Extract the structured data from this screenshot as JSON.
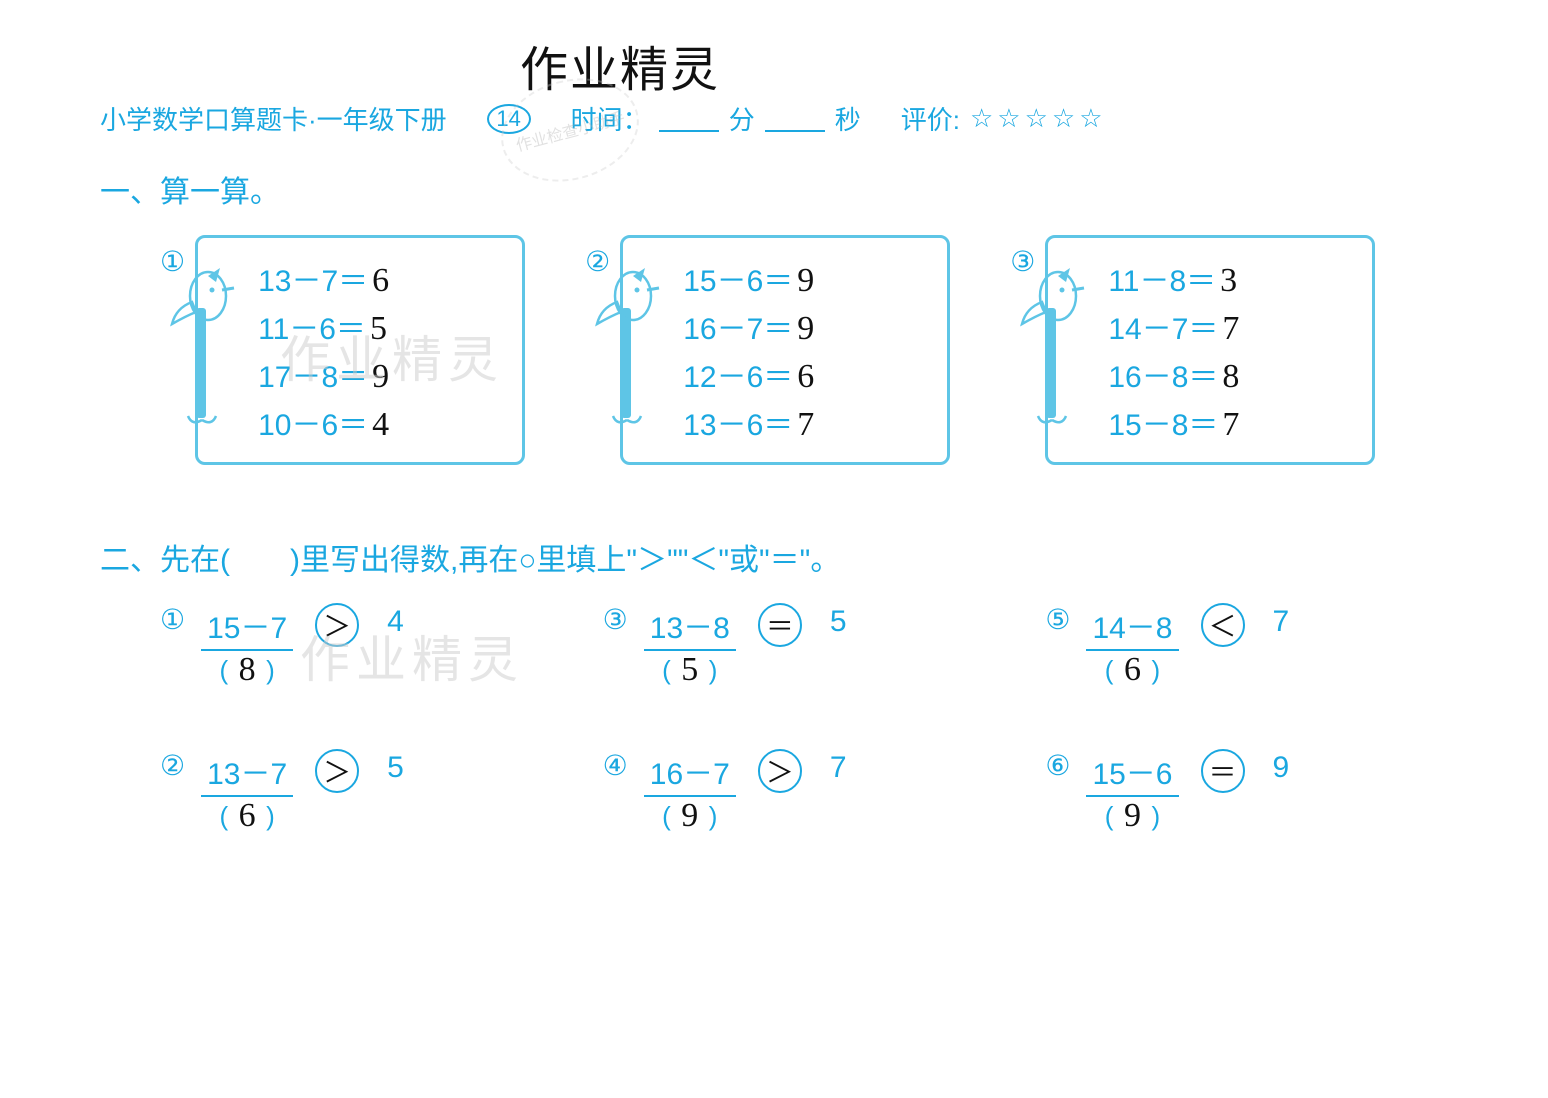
{
  "colors": {
    "print_blue": "#1aa7e0",
    "box_border": "#5ec5e6",
    "handwriting": "#111111",
    "watermark": "#cccccc",
    "background": "#ffffff"
  },
  "typography": {
    "header_fontsize": 26,
    "section_title_fontsize": 30,
    "equation_fontsize": 30,
    "answer_fontsize": 34,
    "handwrite_title_fontsize": 48
  },
  "handwrite_title": "作业精灵",
  "header": {
    "book_title": "小学数学口算题卡·一年级下册",
    "page_number": "14",
    "time_label": "时间：",
    "min_label": "分",
    "sec_label": "秒",
    "rating_label": "评价:",
    "stars": "☆☆☆☆☆"
  },
  "stamp_text": "作业检查小助手",
  "watermarks": [
    "作业精灵",
    "作业精灵"
  ],
  "section1": {
    "title": "一、算一算。",
    "groups": [
      {
        "circ": "①",
        "rows": [
          {
            "expr": "13－7＝",
            "ans": "6"
          },
          {
            "expr": "11－6＝",
            "ans": "5"
          },
          {
            "expr": "17－8＝",
            "ans": "9"
          },
          {
            "expr": "10－6＝",
            "ans": "4"
          }
        ]
      },
      {
        "circ": "②",
        "rows": [
          {
            "expr": "15－6＝",
            "ans": "9"
          },
          {
            "expr": "16－7＝",
            "ans": "9"
          },
          {
            "expr": "12－6＝",
            "ans": "6"
          },
          {
            "expr": "13－6＝",
            "ans": "7"
          }
        ]
      },
      {
        "circ": "③",
        "rows": [
          {
            "expr": "11－8＝",
            "ans": "3"
          },
          {
            "expr": "14－7＝",
            "ans": "7"
          },
          {
            "expr": "16－8＝",
            "ans": "8"
          },
          {
            "expr": "15－8＝",
            "ans": "7"
          }
        ]
      }
    ]
  },
  "section2": {
    "title": "二、先在(　　)里写出得数,再在○里填上\"＞\"\"＜\"或\"＝\"。",
    "problems": [
      {
        "circ": "①",
        "expr": "15－7",
        "ans": "8",
        "op": "＞",
        "rhs": "4"
      },
      {
        "circ": "③",
        "expr": "13－8",
        "ans": "5",
        "op": "＝",
        "rhs": "5"
      },
      {
        "circ": "⑤",
        "expr": "14－8",
        "ans": "6",
        "op": "＜",
        "rhs": "7"
      },
      {
        "circ": "②",
        "expr": "13－7",
        "ans": "6",
        "op": "＞",
        "rhs": "5"
      },
      {
        "circ": "④",
        "expr": "16－7",
        "ans": "9",
        "op": "＞",
        "rhs": "7"
      },
      {
        "circ": "⑥",
        "expr": "15－6",
        "ans": "9",
        "op": "＝",
        "rhs": "9"
      }
    ]
  }
}
